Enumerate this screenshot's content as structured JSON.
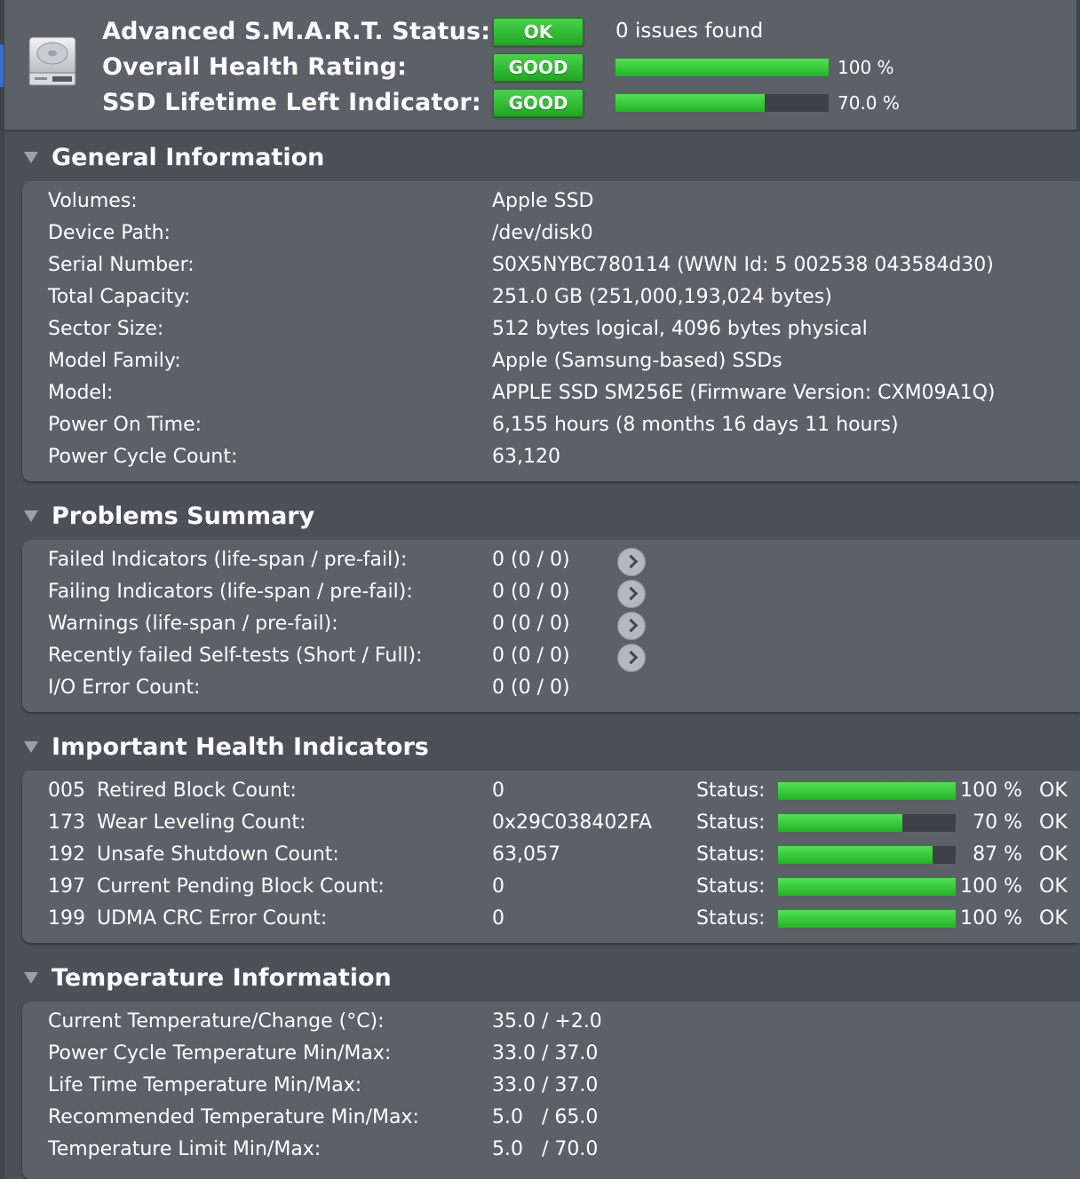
{
  "colors": {
    "background": "#4b5157",
    "panel": "#5b6167",
    "ok_green": "#2fc233",
    "bar_track": "#3c4247"
  },
  "header": {
    "icon": "hard-drive-icon",
    "smart": {
      "label": "Advanced S.M.A.R.T. Status:",
      "badge": "OK",
      "text": "0 issues found"
    },
    "health": {
      "label": "Overall Health Rating:",
      "badge": "GOOD",
      "percent": 100,
      "percent_text": "100 %"
    },
    "lifetime": {
      "label": "SSD Lifetime Left Indicator:",
      "badge": "GOOD",
      "percent": 70,
      "percent_text": "70.0 %"
    }
  },
  "general": {
    "title": "General Information",
    "rows": [
      {
        "key": "Volumes:",
        "value": "Apple SSD"
      },
      {
        "key": "Device Path:",
        "value": "/dev/disk0"
      },
      {
        "key": "Serial Number:",
        "value": "S0X5NYBC780114 (WWN Id: 5 002538 043584d30)"
      },
      {
        "key": "Total Capacity:",
        "value": "251.0 GB (251,000,193,024 bytes)"
      },
      {
        "key": "Sector Size:",
        "value": "512 bytes logical, 4096 bytes physical"
      },
      {
        "key": "Model Family:",
        "value": "Apple (Samsung-based) SSDs"
      },
      {
        "key": "Model:",
        "value": "APPLE SSD SM256E  (Firmware Version: CXM09A1Q)"
      },
      {
        "key": "Power On Time:",
        "value": "6,155 hours (8 months 16 days 11 hours)"
      },
      {
        "key": "Power Cycle Count:",
        "value": "63,120"
      }
    ]
  },
  "problems": {
    "title": "Problems Summary",
    "rows": [
      {
        "key": "Failed Indicators (life-span / pre-fail):",
        "value": "0  (0 / 0)"
      },
      {
        "key": "Failing Indicators (life-span / pre-fail):",
        "value": "0  (0 / 0)"
      },
      {
        "key": "Warnings (life-span / pre-fail):",
        "value": "0  (0 / 0)"
      },
      {
        "key": "Recently failed Self-tests (Short / Full):",
        "value": "0  (0 / 0)"
      },
      {
        "key": "I/O Error Count:",
        "value": "0  (0 / 0)"
      }
    ]
  },
  "health": {
    "title": "Important Health Indicators",
    "status_label": "Status:",
    "rows": [
      {
        "id": "005",
        "name": "Retired Block Count:",
        "value": "0",
        "percent": 100,
        "percent_text": "100 %",
        "status": "OK"
      },
      {
        "id": "173",
        "name": "Wear Leveling Count:",
        "value": "0x29C038402FA",
        "percent": 70,
        "percent_text": "70 %",
        "status": "OK"
      },
      {
        "id": "192",
        "name": "Unsafe Shutdown Count:",
        "value": "63,057",
        "percent": 87,
        "percent_text": "87 %",
        "status": "OK"
      },
      {
        "id": "197",
        "name": "Current Pending Block Count:",
        "value": "0",
        "percent": 100,
        "percent_text": "100 %",
        "status": "OK"
      },
      {
        "id": "199",
        "name": "UDMA CRC Error Count:",
        "value": "0",
        "percent": 100,
        "percent_text": "100 %",
        "status": "OK"
      }
    ]
  },
  "temperature": {
    "title": "Temperature Information",
    "rows": [
      {
        "key": "Current Temperature/Change (°C):",
        "value": "35.0 / +2.0"
      },
      {
        "key": "Power Cycle Temperature Min/Max:",
        "value": "33.0 / 37.0"
      },
      {
        "key": "Life Time Temperature Min/Max:",
        "value": "33.0 / 37.0"
      },
      {
        "key": "Recommended Temperature Min/Max:",
        "value": "5.0   / 65.0"
      },
      {
        "key": "Temperature Limit Min/Max:",
        "value": "5.0   / 70.0"
      }
    ]
  }
}
